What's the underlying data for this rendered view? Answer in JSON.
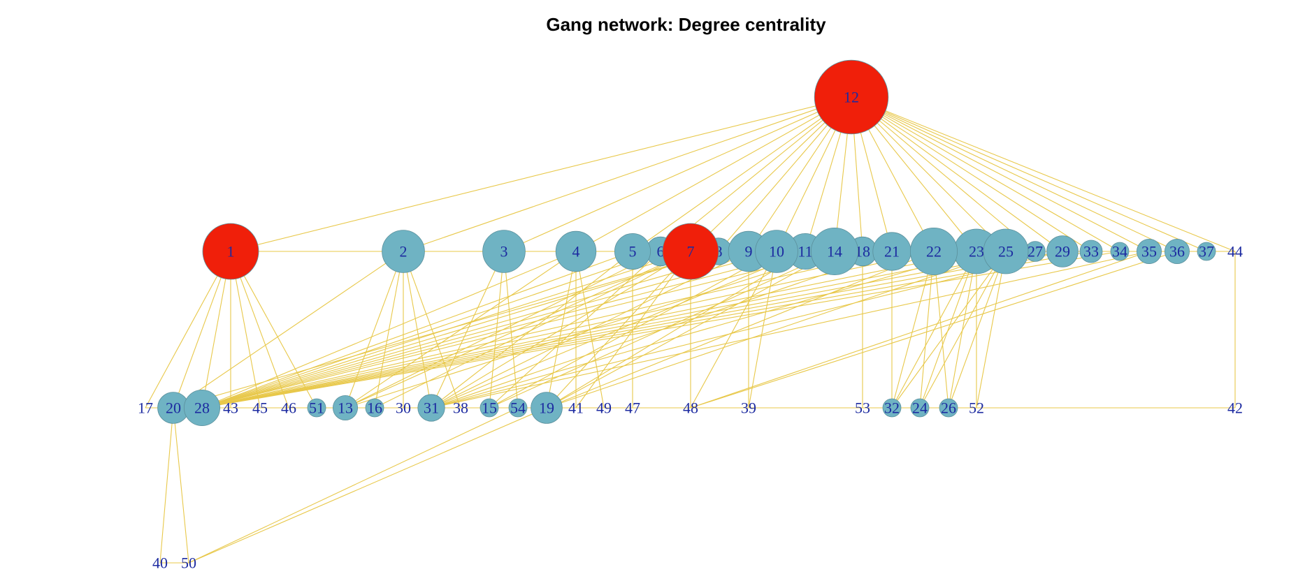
{
  "title": "Gang network: Degree centrality",
  "colors": {
    "edge": "#e8c84a",
    "node_default": "#6fb3c3",
    "node_highlight": "#f01f0a",
    "label": "#1c2aa0"
  },
  "nodes": [
    {
      "id": "12",
      "degree": 28,
      "highlight": true
    },
    {
      "id": "1",
      "degree": 20,
      "highlight": true
    },
    {
      "id": "7",
      "degree": 20,
      "highlight": true
    },
    {
      "id": "2",
      "degree": 14
    },
    {
      "id": "3",
      "degree": 14
    },
    {
      "id": "4",
      "degree": 13
    },
    {
      "id": "5",
      "degree": 11
    },
    {
      "id": "6",
      "degree": 8
    },
    {
      "id": "8",
      "degree": 7
    },
    {
      "id": "9",
      "degree": 13
    },
    {
      "id": "10",
      "degree": 14
    },
    {
      "id": "11",
      "degree": 11
    },
    {
      "id": "14",
      "degree": 16
    },
    {
      "id": "18",
      "degree": 8
    },
    {
      "id": "21",
      "degree": 12
    },
    {
      "id": "22",
      "degree": 16
    },
    {
      "id": "23",
      "degree": 15
    },
    {
      "id": "25",
      "degree": 15
    },
    {
      "id": "27",
      "degree": 4
    },
    {
      "id": "29",
      "degree": 9
    },
    {
      "id": "33",
      "degree": 5
    },
    {
      "id": "34",
      "degree": 3
    },
    {
      "id": "35",
      "degree": 6
    },
    {
      "id": "36",
      "degree": 6
    },
    {
      "id": "37",
      "degree": 2
    },
    {
      "id": "44",
      "degree": 1
    },
    {
      "id": "17",
      "degree": 1
    },
    {
      "id": "20",
      "degree": 9
    },
    {
      "id": "28",
      "degree": 11
    },
    {
      "id": "43",
      "degree": 1
    },
    {
      "id": "45",
      "degree": 1
    },
    {
      "id": "46",
      "degree": 1
    },
    {
      "id": "51",
      "degree": 2
    },
    {
      "id": "13",
      "degree": 6
    },
    {
      "id": "16",
      "degree": 3
    },
    {
      "id": "30",
      "degree": 1
    },
    {
      "id": "31",
      "degree": 7
    },
    {
      "id": "38",
      "degree": 1
    },
    {
      "id": "15",
      "degree": 3
    },
    {
      "id": "54",
      "degree": 2
    },
    {
      "id": "19",
      "degree": 9
    },
    {
      "id": "41",
      "degree": 1
    },
    {
      "id": "49",
      "degree": 1
    },
    {
      "id": "47",
      "degree": 1
    },
    {
      "id": "48",
      "degree": 1
    },
    {
      "id": "39",
      "degree": 1
    },
    {
      "id": "53",
      "degree": 1
    },
    {
      "id": "32",
      "degree": 2
    },
    {
      "id": "24",
      "degree": 2
    },
    {
      "id": "26",
      "degree": 2
    },
    {
      "id": "52",
      "degree": 1
    },
    {
      "id": "42",
      "degree": 1
    },
    {
      "id": "40",
      "degree": 1
    },
    {
      "id": "50",
      "degree": 1
    }
  ],
  "edges": [
    [
      "12",
      "1"
    ],
    [
      "12",
      "2"
    ],
    [
      "12",
      "3"
    ],
    [
      "12",
      "4"
    ],
    [
      "12",
      "5"
    ],
    [
      "12",
      "6"
    ],
    [
      "12",
      "7"
    ],
    [
      "12",
      "8"
    ],
    [
      "12",
      "9"
    ],
    [
      "12",
      "10"
    ],
    [
      "12",
      "11"
    ],
    [
      "12",
      "14"
    ],
    [
      "12",
      "18"
    ],
    [
      "12",
      "21"
    ],
    [
      "12",
      "22"
    ],
    [
      "12",
      "23"
    ],
    [
      "12",
      "25"
    ],
    [
      "12",
      "27"
    ],
    [
      "12",
      "29"
    ],
    [
      "12",
      "33"
    ],
    [
      "12",
      "34"
    ],
    [
      "12",
      "35"
    ],
    [
      "12",
      "36"
    ],
    [
      "12",
      "37"
    ],
    [
      "12",
      "44"
    ],
    [
      "1",
      "2"
    ],
    [
      "2",
      "3"
    ],
    [
      "3",
      "4"
    ],
    [
      "4",
      "5"
    ],
    [
      "5",
      "6"
    ],
    [
      "6",
      "7"
    ],
    [
      "7",
      "8"
    ],
    [
      "8",
      "9"
    ],
    [
      "9",
      "10"
    ],
    [
      "10",
      "11"
    ],
    [
      "11",
      "14"
    ],
    [
      "14",
      "18"
    ],
    [
      "18",
      "21"
    ],
    [
      "21",
      "22"
    ],
    [
      "22",
      "23"
    ],
    [
      "23",
      "25"
    ],
    [
      "25",
      "27"
    ],
    [
      "27",
      "29"
    ],
    [
      "29",
      "33"
    ],
    [
      "33",
      "34"
    ],
    [
      "34",
      "35"
    ],
    [
      "35",
      "36"
    ],
    [
      "36",
      "37"
    ],
    [
      "37",
      "44"
    ],
    [
      "1",
      "17"
    ],
    [
      "1",
      "20"
    ],
    [
      "1",
      "28"
    ],
    [
      "1",
      "43"
    ],
    [
      "1",
      "45"
    ],
    [
      "1",
      "46"
    ],
    [
      "1",
      "51"
    ],
    [
      "2",
      "13"
    ],
    [
      "2",
      "16"
    ],
    [
      "2",
      "30"
    ],
    [
      "2",
      "31"
    ],
    [
      "2",
      "38"
    ],
    [
      "2",
      "20"
    ],
    [
      "3",
      "15"
    ],
    [
      "3",
      "54"
    ],
    [
      "3",
      "31"
    ],
    [
      "4",
      "19"
    ],
    [
      "4",
      "41"
    ],
    [
      "4",
      "49"
    ],
    [
      "4",
      "28"
    ],
    [
      "4",
      "13"
    ],
    [
      "5",
      "47"
    ],
    [
      "5",
      "28"
    ],
    [
      "5",
      "31"
    ],
    [
      "6",
      "28"
    ],
    [
      "6",
      "13"
    ],
    [
      "6",
      "15"
    ],
    [
      "7",
      "48"
    ],
    [
      "7",
      "28"
    ],
    [
      "7",
      "31"
    ],
    [
      "7",
      "19"
    ],
    [
      "7",
      "13"
    ],
    [
      "7",
      "16"
    ],
    [
      "7",
      "41"
    ],
    [
      "8",
      "28"
    ],
    [
      "8",
      "20"
    ],
    [
      "9",
      "39"
    ],
    [
      "9",
      "28"
    ],
    [
      "9",
      "31"
    ],
    [
      "10",
      "48"
    ],
    [
      "10",
      "28"
    ],
    [
      "10",
      "15"
    ],
    [
      "10",
      "39"
    ],
    [
      "11",
      "28"
    ],
    [
      "11",
      "31"
    ],
    [
      "11",
      "19"
    ],
    [
      "14",
      "28"
    ],
    [
      "14",
      "13"
    ],
    [
      "14",
      "15"
    ],
    [
      "14",
      "19"
    ],
    [
      "18",
      "53"
    ],
    [
      "21",
      "32"
    ],
    [
      "21",
      "28"
    ],
    [
      "21",
      "31"
    ],
    [
      "22",
      "32"
    ],
    [
      "22",
      "24"
    ],
    [
      "22",
      "26"
    ],
    [
      "22",
      "28"
    ],
    [
      "22",
      "19"
    ],
    [
      "23",
      "32"
    ],
    [
      "23",
      "24"
    ],
    [
      "23",
      "26"
    ],
    [
      "23",
      "52"
    ],
    [
      "23",
      "28"
    ],
    [
      "23",
      "31"
    ],
    [
      "25",
      "32"
    ],
    [
      "25",
      "24"
    ],
    [
      "25",
      "26"
    ],
    [
      "25",
      "52"
    ],
    [
      "25",
      "28"
    ],
    [
      "25",
      "19"
    ],
    [
      "27",
      "28"
    ],
    [
      "29",
      "28"
    ],
    [
      "29",
      "31"
    ],
    [
      "33",
      "28"
    ],
    [
      "34",
      "28"
    ],
    [
      "35",
      "31"
    ],
    [
      "35",
      "48"
    ],
    [
      "36",
      "48"
    ],
    [
      "44",
      "42"
    ],
    [
      "17",
      "20"
    ],
    [
      "20",
      "28"
    ],
    [
      "28",
      "43"
    ],
    [
      "43",
      "45"
    ],
    [
      "45",
      "46"
    ],
    [
      "46",
      "51"
    ],
    [
      "51",
      "13"
    ],
    [
      "13",
      "16"
    ],
    [
      "16",
      "30"
    ],
    [
      "30",
      "31"
    ],
    [
      "31",
      "38"
    ],
    [
      "38",
      "15"
    ],
    [
      "15",
      "54"
    ],
    [
      "54",
      "19"
    ],
    [
      "19",
      "41"
    ],
    [
      "41",
      "49"
    ],
    [
      "49",
      "47"
    ],
    [
      "47",
      "48"
    ],
    [
      "48",
      "39"
    ],
    [
      "39",
      "53"
    ],
    [
      "53",
      "32"
    ],
    [
      "32",
      "24"
    ],
    [
      "24",
      "26"
    ],
    [
      "26",
      "52"
    ],
    [
      "52",
      "42"
    ],
    [
      "20",
      "40"
    ],
    [
      "20",
      "50"
    ],
    [
      "40",
      "50"
    ],
    [
      "50",
      "19"
    ],
    [
      "50",
      "54"
    ]
  ]
}
